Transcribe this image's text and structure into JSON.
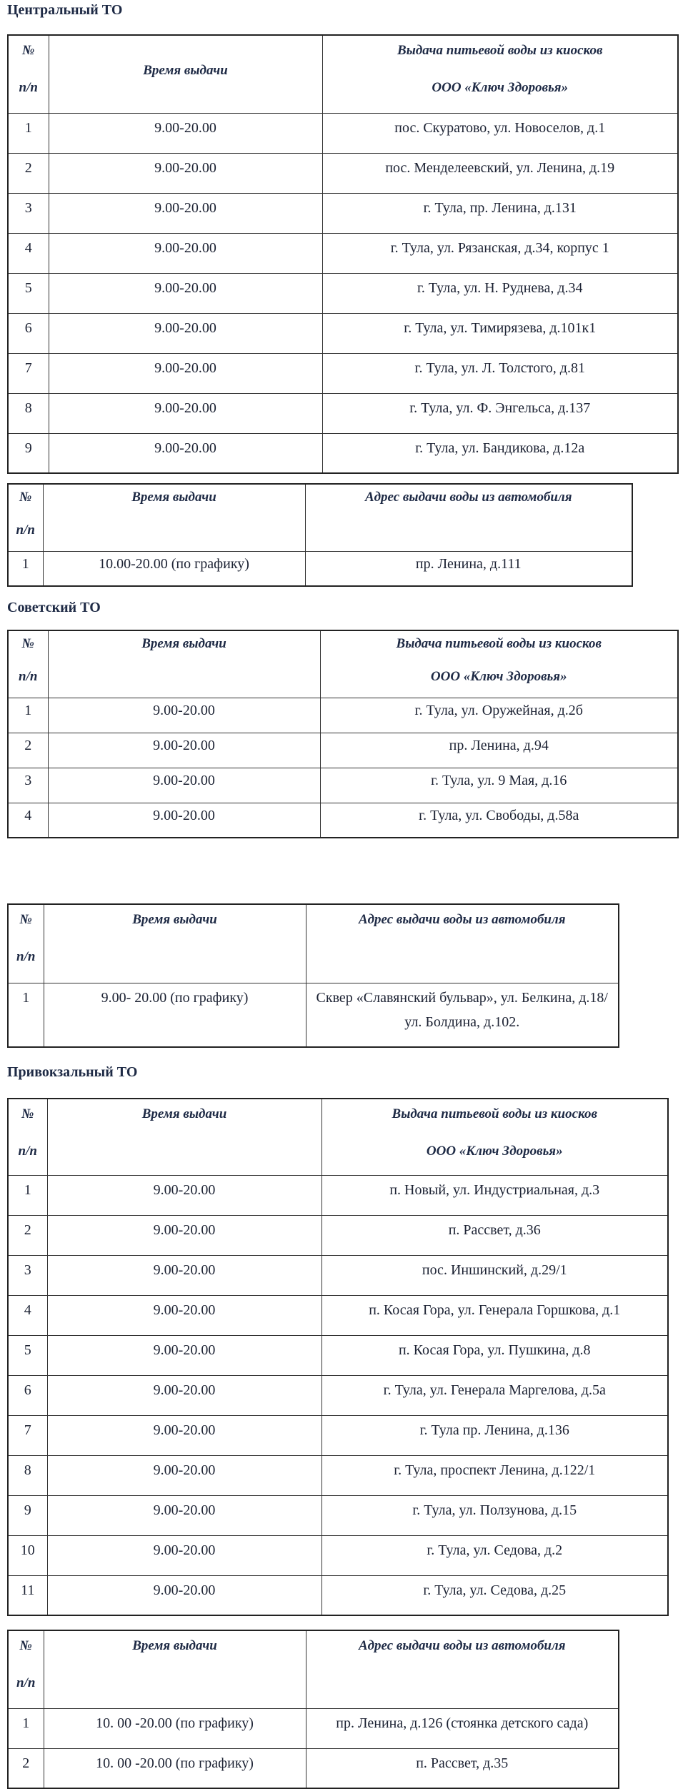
{
  "sections": [
    {
      "title": "Центральный ТО"
    },
    {
      "title": "Советский ТО"
    },
    {
      "title": "Привокзальный ТО"
    }
  ],
  "tables": [
    {
      "headers": [
        "№\nп/п",
        "Время выдачи",
        "Выдача питьевой воды из киосков\nООО «Ключ Здоровья»"
      ],
      "rows": [
        [
          "1",
          "9.00-20.00",
          "пос. Скуратово, ул. Новоселов, д.1"
        ],
        [
          "2",
          "9.00-20.00",
          "пос. Менделеевский, ул. Ленина, д.19"
        ],
        [
          "3",
          "9.00-20.00",
          "г. Тула, пр. Ленина, д.131"
        ],
        [
          "4",
          "9.00-20.00",
          "г. Тула, ул. Рязанская, д.34, корпус 1"
        ],
        [
          "5",
          "9.00-20.00",
          "г. Тула, ул. Н. Руднева, д.34"
        ],
        [
          "6",
          "9.00-20.00",
          "г. Тула, ул. Тимирязева, д.101к1"
        ],
        [
          "7",
          "9.00-20.00",
          "г. Тула, ул. Л. Толстого, д.81"
        ],
        [
          "8",
          "9.00-20.00",
          "г. Тула, ул. Ф. Энгельса, д.137"
        ],
        [
          "9",
          "9.00-20.00",
          "г. Тула, ул. Бандикова, д.12а"
        ]
      ]
    },
    {
      "headers": [
        "№\nп/п",
        "Время выдачи",
        "Адрес выдачи воды из автомобиля"
      ],
      "rows": [
        [
          "1",
          "10.00-20.00 (по графику)",
          "пр. Ленина, д.111"
        ]
      ]
    },
    {
      "headers": [
        "№\nп/п",
        "Время выдачи",
        "Выдача питьевой воды из киосков\nООО «Ключ Здоровья»"
      ],
      "rows": [
        [
          "1",
          "9.00-20.00",
          "г. Тула, ул. Оружейная, д.2б"
        ],
        [
          "2",
          "9.00-20.00",
          "пр. Ленина, д.94"
        ],
        [
          "3",
          "9.00-20.00",
          "г. Тула, ул. 9 Мая, д.16"
        ],
        [
          "4",
          "9.00-20.00",
          "г. Тула, ул. Свободы, д.58а"
        ]
      ]
    },
    {
      "headers": [
        "№\nп/п",
        "Время выдачи",
        "Адрес выдачи воды из автомобиля"
      ],
      "rows": [
        [
          "1",
          "9.00- 20.00 (по графику)",
          "Сквер «Славянский бульвар», ул. Белкина, д.18/ул. Болдина, д.102."
        ]
      ]
    },
    {
      "headers": [
        "№\nп/п",
        "Время выдачи",
        "Выдача питьевой воды из киосков\nООО «Ключ Здоровья»"
      ],
      "rows": [
        [
          "1",
          "9.00-20.00",
          "п. Новый, ул. Индустриальная, д.3"
        ],
        [
          "2",
          "9.00-20.00",
          "п.  Рассвет, д.36"
        ],
        [
          "3",
          "9.00-20.00",
          "пос. Иншинский, д.29/1"
        ],
        [
          "4",
          "9.00-20.00",
          "п. Косая Гора, ул. Генерала Горшкова, д.1"
        ],
        [
          "5",
          "9.00-20.00",
          "п. Косая Гора, ул. Пушкина, д.8"
        ],
        [
          "6",
          "9.00-20.00",
          "г. Тула, ул.  Генерала Маргелова, д.5а"
        ],
        [
          "7",
          "9.00-20.00",
          "г. Тула пр. Ленина, д.136"
        ],
        [
          "8",
          "9.00-20.00",
          "г. Тула, проспект Ленина, д.122/1"
        ],
        [
          "9",
          "9.00-20.00",
          "г. Тула, ул. Ползунова, д.15"
        ],
        [
          "10",
          "9.00-20.00",
          "г. Тула, ул. Седова, д.2"
        ],
        [
          "11",
          "9.00-20.00",
          "г. Тула, ул. Седова, д.25"
        ]
      ]
    },
    {
      "headers": [
        "№\nп/п",
        "Время выдачи",
        "Адрес выдачи воды из автомобиля"
      ],
      "rows": [
        [
          "1",
          "10. 00 -20.00 (по графику)",
          "пр. Ленина, д.126 (стоянка детского сада)"
        ],
        [
          "2",
          "10. 00 -20.00 (по графику)",
          "п. Рассвет, д.35"
        ]
      ]
    }
  ]
}
